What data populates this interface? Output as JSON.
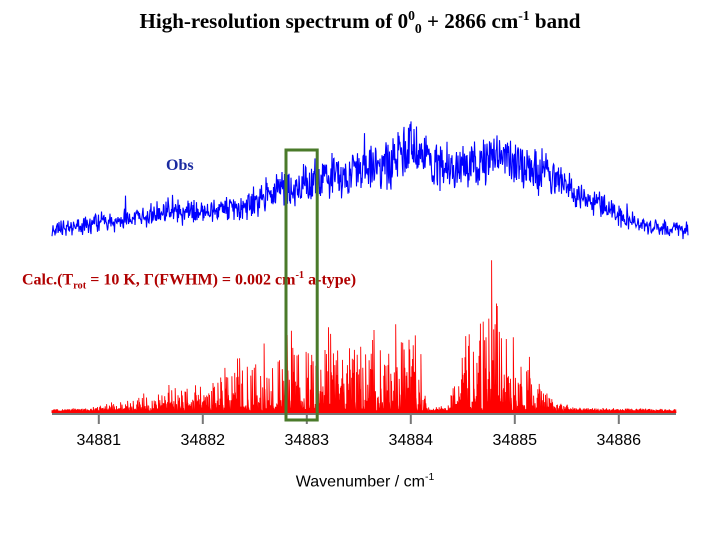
{
  "title": {
    "prefix": "High-resolution spectrum of 0",
    "sup1": "0",
    "sub1": "0",
    "middle": " + 2866 cm",
    "sup2": "-1",
    "suffix": " band"
  },
  "obs_label": "Obs",
  "calc_label": {
    "prefix": "Calc.(T",
    "sub": "rot",
    "middle": " = 10 K, Γ(FWHM) = 0.002 cm",
    "sup": "-1",
    "suffix": " a-type)"
  },
  "xlabel": {
    "text": "Wavenumber / cm",
    "sup": "-1"
  },
  "chart_data": {
    "type": "line",
    "xlim": [
      34880.55,
      34886.55
    ],
    "x_ticks": [
      34881,
      34882,
      34883,
      34884,
      34885,
      34886
    ],
    "x_tick_labels": [
      "34881",
      "34882",
      "34883",
      "34884",
      "34885",
      "34886"
    ],
    "highlight_region": [
      34882.8,
      34883.1
    ],
    "series": [
      {
        "name": "Obs",
        "color": "#0000ff",
        "envelope": [
          [
            34880.55,
            0.05
          ],
          [
            34880.8,
            0.08
          ],
          [
            34881.0,
            0.12
          ],
          [
            34881.3,
            0.14
          ],
          [
            34881.6,
            0.2
          ],
          [
            34882.0,
            0.2
          ],
          [
            34882.4,
            0.24
          ],
          [
            34882.7,
            0.36
          ],
          [
            34883.0,
            0.44
          ],
          [
            34883.4,
            0.5
          ],
          [
            34883.8,
            0.58
          ],
          [
            34884.0,
            0.75
          ],
          [
            34884.2,
            0.55
          ],
          [
            34884.5,
            0.56
          ],
          [
            34884.8,
            0.62
          ],
          [
            34885.0,
            0.62
          ],
          [
            34885.3,
            0.52
          ],
          [
            34885.6,
            0.36
          ],
          [
            34885.9,
            0.22
          ],
          [
            34886.2,
            0.1
          ],
          [
            34886.5,
            0.06
          ]
        ]
      },
      {
        "name": "Calc.",
        "color": "#ff0000",
        "envelope": [
          [
            34880.55,
            0.0
          ],
          [
            34880.9,
            0.01
          ],
          [
            34881.2,
            0.05
          ],
          [
            34881.5,
            0.1
          ],
          [
            34881.8,
            0.16
          ],
          [
            34882.1,
            0.22
          ],
          [
            34882.4,
            0.3
          ],
          [
            34882.7,
            0.4
          ],
          [
            34883.0,
            0.44
          ],
          [
            34883.3,
            0.46
          ],
          [
            34883.6,
            0.48
          ],
          [
            34883.9,
            0.6
          ],
          [
            34884.0,
            0.58
          ],
          [
            34884.1,
            0.35
          ],
          [
            34884.15,
            0.02
          ],
          [
            34884.35,
            0.02
          ],
          [
            34884.5,
            0.55
          ],
          [
            34884.7,
            0.78
          ],
          [
            34884.85,
            0.82
          ],
          [
            34885.0,
            0.52
          ],
          [
            34885.2,
            0.2
          ],
          [
            34885.4,
            0.06
          ],
          [
            34885.6,
            0.01
          ],
          [
            34886.55,
            0.0
          ]
        ]
      }
    ]
  }
}
